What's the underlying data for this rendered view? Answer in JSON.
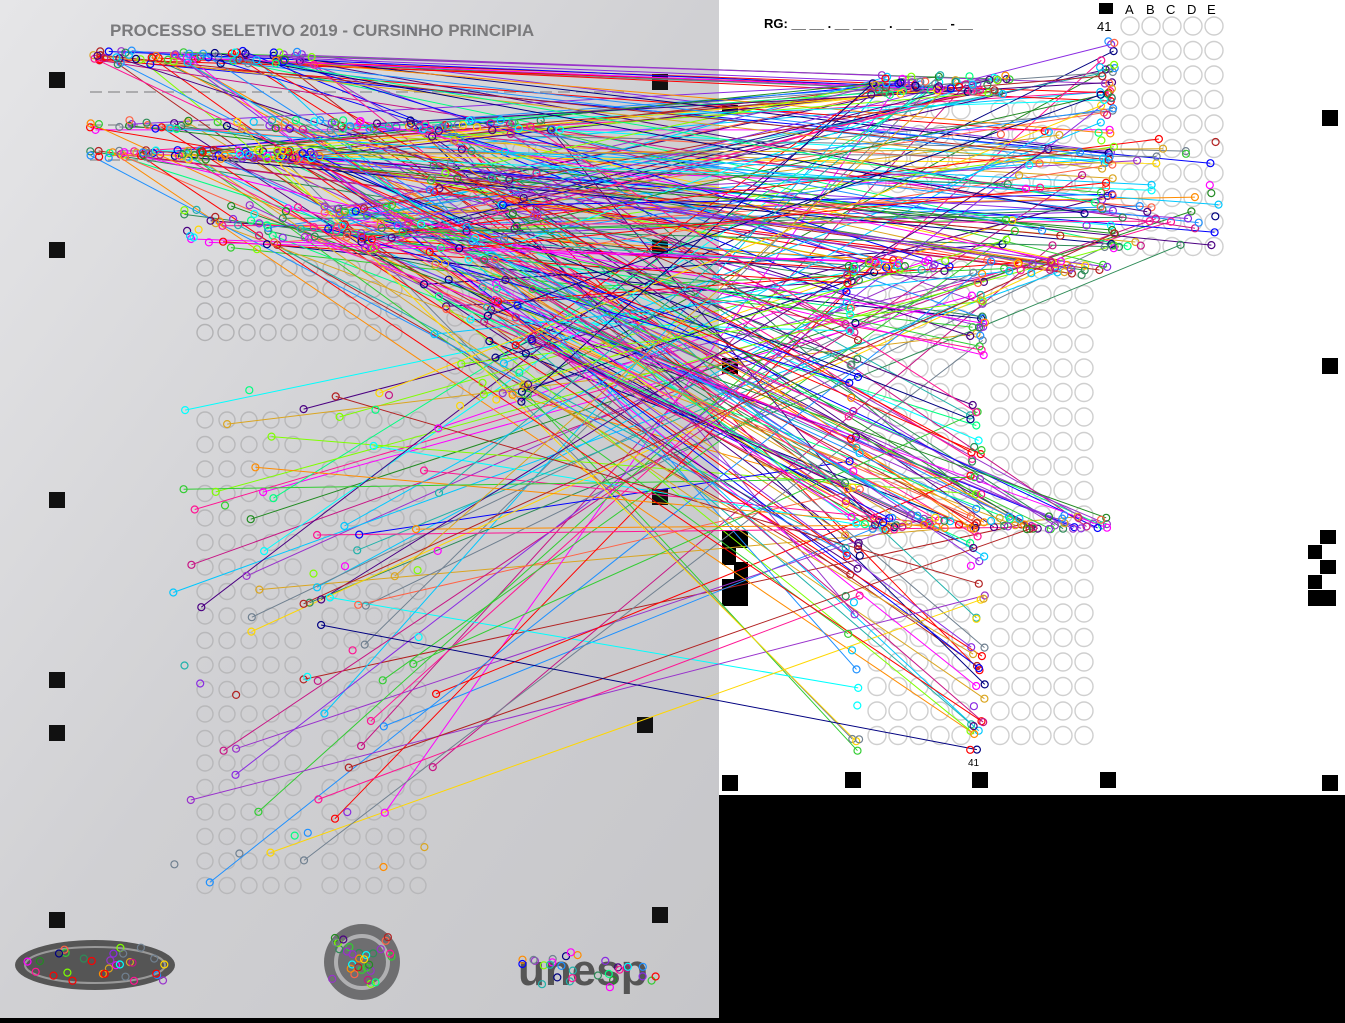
{
  "photo_panel": {
    "header": "PROCESSO SELETIVO 2019 - CURSINHO PRINCIPIA",
    "logos": [
      "",
      "",
      "unesp"
    ]
  },
  "template_panel": {
    "rg_label": "RG: __ __ . __ __ __ . __ __ __ - __",
    "options": [
      "A",
      "B",
      "C",
      "D",
      "E"
    ],
    "question_start_top": "41",
    "question_start_bottom": "41"
  },
  "colors": {
    "photo_bg": "#d4d4d6",
    "template_bg": "#ffffff",
    "bubble": "#c8c8c8",
    "marker": "#000000"
  }
}
